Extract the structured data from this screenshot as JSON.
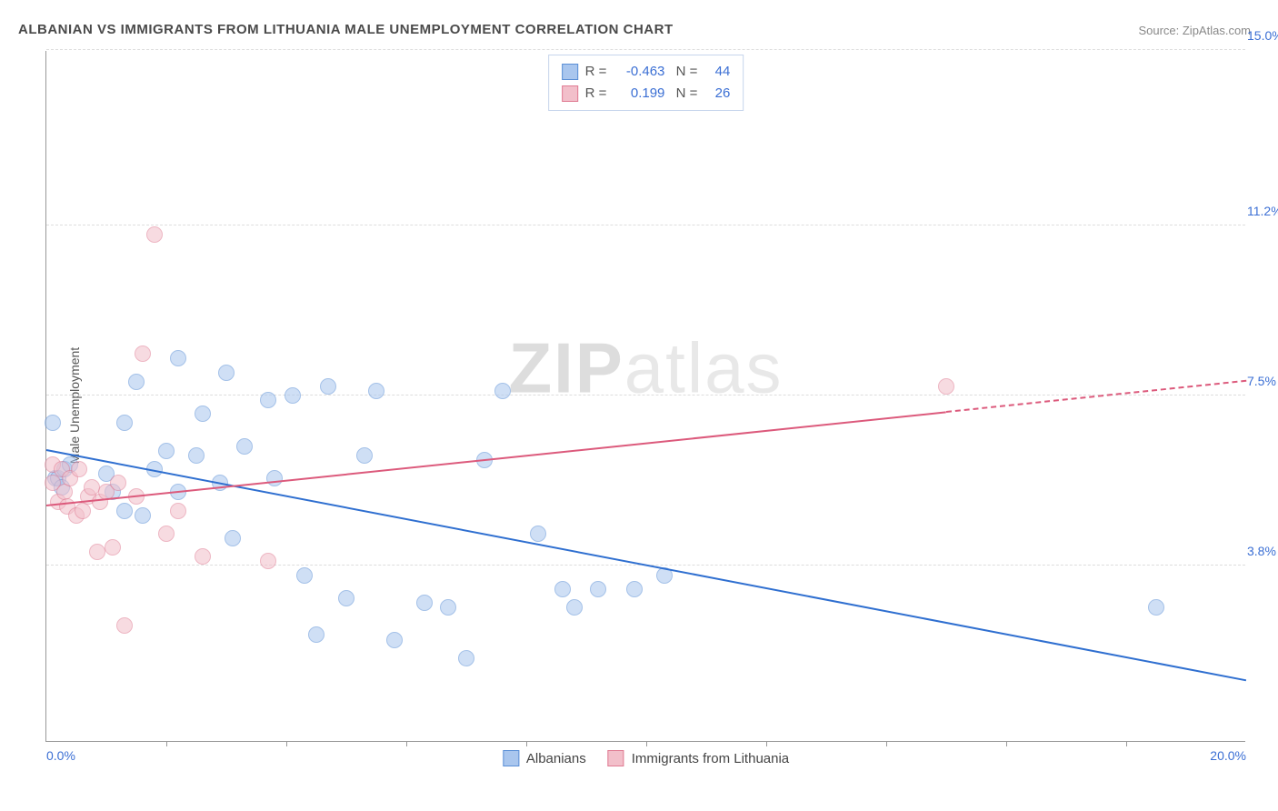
{
  "title": "ALBANIAN VS IMMIGRANTS FROM LITHUANIA MALE UNEMPLOYMENT CORRELATION CHART",
  "source": "Source: ZipAtlas.com",
  "ylabel": "Male Unemployment",
  "watermark_a": "ZIP",
  "watermark_b": "atlas",
  "chart": {
    "type": "scatter",
    "xlim": [
      0,
      20
    ],
    "ylim": [
      0,
      15
    ],
    "x_axis_labels": [
      {
        "v": 0,
        "t": "0.0%"
      },
      {
        "v": 20,
        "t": "20.0%"
      }
    ],
    "x_ticks": [
      2,
      4,
      6,
      8,
      10,
      12,
      14,
      16,
      18
    ],
    "y_gridlines": [
      {
        "v": 3.8,
        "t": "3.8%"
      },
      {
        "v": 7.5,
        "t": "7.5%"
      },
      {
        "v": 11.2,
        "t": "11.2%"
      },
      {
        "v": 15.0,
        "t": "15.0%"
      }
    ],
    "background_color": "#ffffff",
    "grid_color": "#dddddd",
    "axis_color": "#999999",
    "label_color": "#3b6fd4",
    "marker_radius": 9,
    "marker_opacity": 0.55,
    "line_width": 2
  },
  "series": [
    {
      "key": "albanians",
      "label": "Albanians",
      "R": "-0.463",
      "N": "44",
      "fill": "#a9c6ee",
      "stroke": "#5a8fd6",
      "line_color": "#2f6fd0",
      "trend": {
        "x1": 0,
        "y1": 6.3,
        "x2": 20,
        "y2": 1.3,
        "dashed_from": null
      },
      "points": [
        [
          0.1,
          6.9
        ],
        [
          0.15,
          5.7
        ],
        [
          0.2,
          5.7
        ],
        [
          0.25,
          5.5
        ],
        [
          0.3,
          5.9
        ],
        [
          0.4,
          6.0
        ],
        [
          1.0,
          5.8
        ],
        [
          1.1,
          5.4
        ],
        [
          1.3,
          6.9
        ],
        [
          1.3,
          5.0
        ],
        [
          1.5,
          7.8
        ],
        [
          1.6,
          4.9
        ],
        [
          1.8,
          5.9
        ],
        [
          2.0,
          6.3
        ],
        [
          2.2,
          5.4
        ],
        [
          2.2,
          8.3
        ],
        [
          2.5,
          6.2
        ],
        [
          2.6,
          7.1
        ],
        [
          2.9,
          5.6
        ],
        [
          3.0,
          8.0
        ],
        [
          3.1,
          4.4
        ],
        [
          3.3,
          6.4
        ],
        [
          3.7,
          7.4
        ],
        [
          3.8,
          5.7
        ],
        [
          4.1,
          7.5
        ],
        [
          4.3,
          3.6
        ],
        [
          4.5,
          2.3
        ],
        [
          4.7,
          7.7
        ],
        [
          5.0,
          3.1
        ],
        [
          5.3,
          6.2
        ],
        [
          5.5,
          7.6
        ],
        [
          5.8,
          2.2
        ],
        [
          6.3,
          3.0
        ],
        [
          6.7,
          2.9
        ],
        [
          7.0,
          1.8
        ],
        [
          7.3,
          6.1
        ],
        [
          7.6,
          7.6
        ],
        [
          8.2,
          4.5
        ],
        [
          8.6,
          3.3
        ],
        [
          8.8,
          2.9
        ],
        [
          9.2,
          3.3
        ],
        [
          9.8,
          3.3
        ],
        [
          10.3,
          3.6
        ],
        [
          18.5,
          2.9
        ]
      ]
    },
    {
      "key": "lithuania",
      "label": "Immigrants from Lithuania",
      "R": "0.199",
      "N": "26",
      "fill": "#f2bfca",
      "stroke": "#e07c93",
      "line_color": "#dc5a7c",
      "trend": {
        "x1": 0,
        "y1": 5.1,
        "x2": 20,
        "y2": 7.8,
        "dashed_from": 15.0
      },
      "points": [
        [
          0.1,
          5.6
        ],
        [
          0.1,
          6.0
        ],
        [
          0.2,
          5.2
        ],
        [
          0.25,
          5.9
        ],
        [
          0.3,
          5.4
        ],
        [
          0.35,
          5.1
        ],
        [
          0.4,
          5.7
        ],
        [
          0.5,
          4.9
        ],
        [
          0.55,
          5.9
        ],
        [
          0.6,
          5.0
        ],
        [
          0.7,
          5.3
        ],
        [
          0.75,
          5.5
        ],
        [
          0.85,
          4.1
        ],
        [
          0.9,
          5.2
        ],
        [
          1.0,
          5.4
        ],
        [
          1.1,
          4.2
        ],
        [
          1.2,
          5.6
        ],
        [
          1.3,
          2.5
        ],
        [
          1.5,
          5.3
        ],
        [
          1.6,
          8.4
        ],
        [
          1.8,
          11.0
        ],
        [
          2.0,
          4.5
        ],
        [
          2.2,
          5.0
        ],
        [
          2.6,
          4.0
        ],
        [
          3.7,
          3.9
        ],
        [
          15.0,
          7.7
        ]
      ]
    }
  ]
}
